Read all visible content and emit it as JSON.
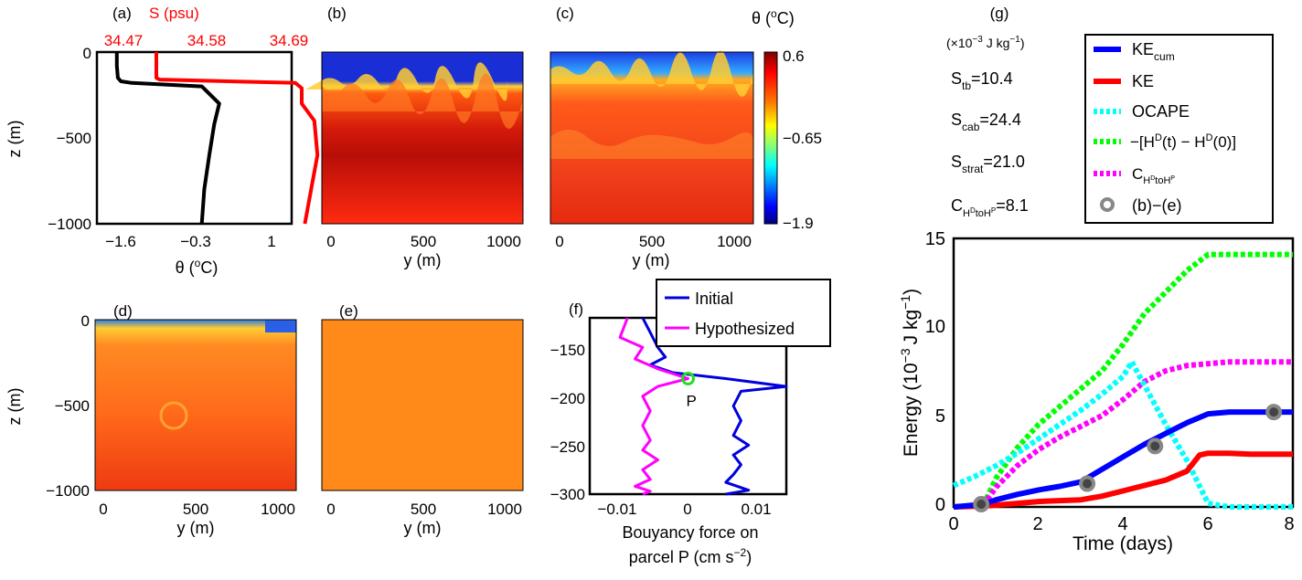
{
  "panel_a": {
    "label": "(a)",
    "salinity_title": "S (psu)",
    "ylabel": "z (m)",
    "xlabel_prefix": "θ (",
    "xlabel_sup": "o",
    "xlabel_suffix": "C)",
    "ytick_labels": [
      "0",
      "−500",
      "−1000"
    ],
    "theta_tick_labels": [
      "−1.6",
      "−0.3",
      "1"
    ],
    "salinity_tick_labels": [
      "34.47",
      "34.58",
      "34.69"
    ],
    "accent_color": "#ff0000"
  },
  "panels_bcde": {
    "labels": [
      "(b)",
      "(c)",
      "(d)",
      "(e)"
    ],
    "ylabel": "z (m)",
    "xlabel": "y (m)",
    "ytick_labels": [
      "0",
      "−500",
      "−1000"
    ],
    "xtick_labels": [
      "0",
      "500",
      "1000"
    ]
  },
  "colorbar": {
    "title_prefix": "θ (",
    "title_sup": "o",
    "title_suffix": "C)",
    "tick_labels": [
      "0.6",
      "−0.65",
      "−1.9"
    ]
  },
  "panel_f": {
    "label": "(f)",
    "xlabel_line1": "Bouyancy force on",
    "xlabel_line2_prefix": "parcel P (cm s",
    "xlabel_line2_sup": "−2",
    "xlabel_line2_suffix": ")",
    "xtick_labels": [
      "−0.01",
      "0",
      "0.01"
    ],
    "ytick_labels": [
      "−150",
      "−200",
      "−250",
      "−300"
    ],
    "point_label": "P",
    "legend": [
      "Initial",
      "Hypothesized"
    ]
  },
  "panel_g": {
    "label": "(g)",
    "units_prefix": "(×10",
    "units_sup": "−3",
    "units_mid": " J kg",
    "units_sup2": "−1",
    "units_suffix": ")",
    "stats": [
      {
        "name": "S",
        "sub": "tb",
        "value": "=10.4"
      },
      {
        "name": "S",
        "sub": "cab",
        "value": "=24.4"
      },
      {
        "name": "S",
        "sub": "strat",
        "value": "=21.0"
      },
      {
        "name": "C",
        "sub": "H",
        "sub2": "D",
        "sub3": "toH",
        "sub4": "P",
        "value": "=8.1"
      }
    ],
    "legend": {
      "ke_cum": {
        "main": "KE",
        "sub": "cum"
      },
      "ke": "KE",
      "ocape": "OCAPE",
      "hd": {
        "p1": "−[H",
        "s1": "D",
        "p2": "(t) − H",
        "s2": "D",
        "p3": "(0)]"
      },
      "c": {
        "main": "C",
        "sub": "H",
        "subsup": "D",
        "sub2": "toH",
        "subsup2": "P"
      },
      "markers": "(b)−(e)"
    },
    "ylabel_prefix": "Energy (10",
    "ylabel_sup": "−3",
    "ylabel_mid": "J kg",
    "ylabel_sup2": "−1",
    "ylabel_suffix": ")",
    "xlabel": "Time (days)",
    "xtick_labels": [
      "0",
      "2",
      "4",
      "6",
      "8"
    ],
    "ytick_labels": [
      "0",
      "5",
      "10",
      "15"
    ],
    "colors": {
      "ke_cum": "#0000ff",
      "ke": "#ff0000",
      "ocape": "#00ffff",
      "hd": "#00ff00",
      "c": "#ff00ff",
      "marker": "#888888"
    }
  },
  "chart_data": [
    {
      "type": "line",
      "panel": "(a)",
      "xlabel": "θ (oC)",
      "ylabel": "z (m)",
      "xlim": [
        -2.2,
        1.7
      ],
      "ylim": [
        -1000,
        0
      ],
      "secondary_x_label": "S (psu)",
      "secondary_x_ticks": [
        34.47,
        34.58,
        34.69
      ],
      "series": [
        {
          "name": "θ",
          "x": [
            -1.8,
            -1.8,
            -1.78,
            -1.72,
            -1.5,
            -0.1,
            0.25,
            0.15,
            0.05,
            -0.05,
            -0.1
          ],
          "z": [
            0,
            -80,
            -150,
            -170,
            -180,
            -200,
            -300,
            -420,
            -600,
            -800,
            -1000
          ]
        },
        {
          "name": "S",
          "x": [
            34.47,
            34.47,
            34.47,
            34.475,
            34.69,
            34.7,
            34.7,
            34.72,
            34.725,
            34.715,
            34.705
          ],
          "z": [
            0,
            -80,
            -150,
            -160,
            -180,
            -210,
            -300,
            -400,
            -600,
            -800,
            -1000
          ]
        }
      ]
    },
    {
      "type": "line",
      "panel": "(f)",
      "xlabel": "Bouyancy force on parcel P (cm s−2)",
      "ylim": [
        -300,
        -120
      ],
      "xlim": [
        -0.013,
        0.013
      ],
      "series": [
        {
          "name": "Initial",
          "x": [
            -0.006,
            -0.005,
            -0.004,
            -0.003,
            -0.005,
            -0.002,
            0.005,
            0.013,
            0.007,
            0.006,
            0.007,
            0.006,
            0.008,
            0.006,
            0.007,
            0.006,
            0.005,
            0.008,
            0.005
          ],
          "y": [
            -120,
            -135,
            -150,
            -160,
            -168,
            -176,
            -182,
            -190,
            -195,
            -210,
            -225,
            -240,
            -250,
            -260,
            -270,
            -280,
            -288,
            -296,
            -300
          ]
        },
        {
          "name": "Hypothesized",
          "x": [
            -0.008,
            -0.009,
            -0.006,
            -0.007,
            -0.004,
            0.0,
            -0.004,
            -0.006,
            -0.005,
            -0.006,
            -0.005,
            -0.006,
            -0.004,
            -0.006,
            -0.005,
            -0.007,
            -0.005,
            -0.006
          ],
          "y": [
            -120,
            -140,
            -150,
            -162,
            -172,
            -182,
            -190,
            -200,
            -215,
            -230,
            -245,
            -255,
            -265,
            -275,
            -285,
            -292,
            -297,
            -300
          ]
        }
      ],
      "points": [
        {
          "label": "P",
          "x": 0.0,
          "y": -182
        }
      ]
    },
    {
      "type": "line",
      "panel": "(g)",
      "xlabel": "Time (days)",
      "ylabel": "Energy (10−3 J kg−1)",
      "xlim": [
        0,
        8
      ],
      "ylim": [
        0,
        15
      ],
      "series": [
        {
          "name": "KEcum",
          "style": "solid",
          "x": [
            0,
            0.7,
            1.0,
            1.5,
            2.0,
            2.5,
            3.0,
            3.5,
            4.0,
            4.5,
            5.0,
            5.5,
            6.0,
            6.5,
            7.0,
            7.6,
            8.0
          ],
          "y": [
            0,
            0.15,
            0.4,
            0.7,
            0.95,
            1.15,
            1.4,
            2.1,
            2.8,
            3.5,
            4.1,
            4.7,
            5.2,
            5.3,
            5.3,
            5.3,
            5.3
          ]
        },
        {
          "name": "KE",
          "style": "solid",
          "x": [
            0,
            0.7,
            1.0,
            1.5,
            2.0,
            2.5,
            3.0,
            3.5,
            4.0,
            4.5,
            5.0,
            5.5,
            5.8,
            6.0,
            6.5,
            7.0,
            8.0
          ],
          "y": [
            0,
            0.05,
            0.1,
            0.2,
            0.3,
            0.35,
            0.4,
            0.6,
            0.9,
            1.2,
            1.5,
            2.0,
            2.9,
            3.0,
            3.0,
            2.95,
            2.95
          ]
        },
        {
          "name": "OCAPE",
          "style": "dotted",
          "x": [
            0,
            0.5,
            1.0,
            1.5,
            2.0,
            2.5,
            3.0,
            3.5,
            4.0,
            4.2,
            4.5,
            5.0,
            5.5,
            6.0,
            6.5,
            7.0,
            8.0
          ],
          "y": [
            1.2,
            1.7,
            2.3,
            3.0,
            3.8,
            4.6,
            5.4,
            6.3,
            7.3,
            8.1,
            6.8,
            4.6,
            2.6,
            0.2,
            0.0,
            0.0,
            0.0
          ]
        },
        {
          "name": "−[HD(t) − HD(0)]",
          "style": "dotted",
          "x": [
            0,
            0.7,
            1.0,
            1.5,
            2.0,
            2.5,
            3.0,
            3.5,
            4.0,
            4.5,
            5.0,
            5.5,
            6.0,
            6.5,
            7.0,
            8.0
          ],
          "y": [
            0,
            0.1,
            1.6,
            3.3,
            4.6,
            5.6,
            6.6,
            7.6,
            9.1,
            10.8,
            12.0,
            13.2,
            14.1,
            14.1,
            14.1,
            14.1
          ]
        },
        {
          "name": "CHDtoHP",
          "style": "dotted",
          "x": [
            0,
            0.7,
            1.0,
            1.5,
            2.0,
            2.5,
            3.0,
            3.5,
            4.0,
            4.5,
            5.0,
            5.5,
            6.0,
            6.5,
            7.0,
            8.0
          ],
          "y": [
            0,
            0.1,
            1.1,
            2.3,
            3.2,
            3.9,
            4.5,
            5.1,
            6.0,
            7.0,
            7.6,
            7.9,
            8.0,
            8.1,
            8.1,
            8.1
          ]
        }
      ],
      "markers": {
        "name": "(b)−(e)",
        "x": [
          0.65,
          3.15,
          4.75,
          7.55
        ],
        "y": [
          0.15,
          1.3,
          3.4,
          5.3
        ]
      }
    }
  ]
}
